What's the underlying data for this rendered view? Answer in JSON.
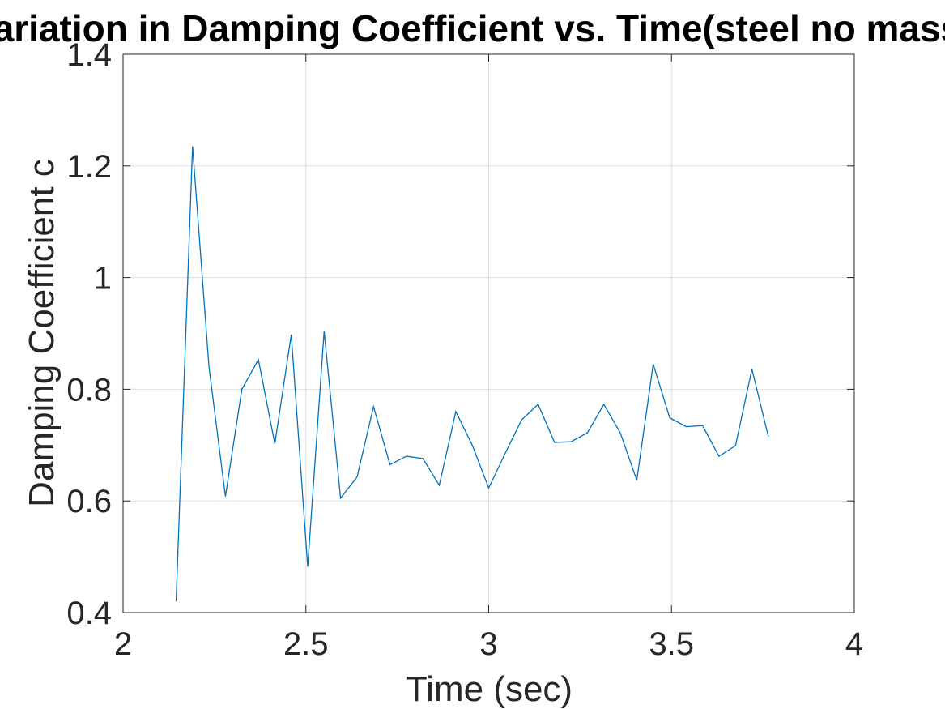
{
  "chart_data": {
    "type": "line",
    "title": "Variation in Damping Coefficient vs. Time(steel no mass)",
    "xlabel": "Time (sec)",
    "ylabel": "Damping Coefficient c",
    "xlim": [
      2,
      4
    ],
    "ylim": [
      0.4,
      1.4
    ],
    "x_ticks": [
      "2",
      "2.5",
      "3",
      "3.5",
      "4"
    ],
    "y_ticks": [
      "0.4",
      "0.6",
      "0.8",
      "1",
      "1.2",
      "1.4"
    ],
    "grid": true,
    "series_color": "#0072BD",
    "x": [
      2.145,
      2.19,
      2.235,
      2.28,
      2.325,
      2.37,
      2.415,
      2.46,
      2.505,
      2.55,
      2.595,
      2.64,
      2.685,
      2.73,
      2.775,
      2.82,
      2.865,
      2.91,
      2.955,
      3.0,
      3.045,
      3.09,
      3.135,
      3.18,
      3.225,
      3.27,
      3.315,
      3.36,
      3.405,
      3.45,
      3.495,
      3.54,
      3.585,
      3.63,
      3.675,
      3.72,
      3.765
    ],
    "y": [
      0.42,
      1.235,
      0.84,
      0.608,
      0.8,
      0.853,
      0.702,
      0.898,
      0.482,
      0.904,
      0.605,
      0.643,
      0.769,
      0.665,
      0.68,
      0.676,
      0.628,
      0.76,
      0.7,
      0.623,
      0.685,
      0.745,
      0.773,
      0.705,
      0.706,
      0.722,
      0.773,
      0.722,
      0.637,
      0.845,
      0.749,
      0.733,
      0.735,
      0.68,
      0.699,
      0.836,
      0.715
    ]
  }
}
